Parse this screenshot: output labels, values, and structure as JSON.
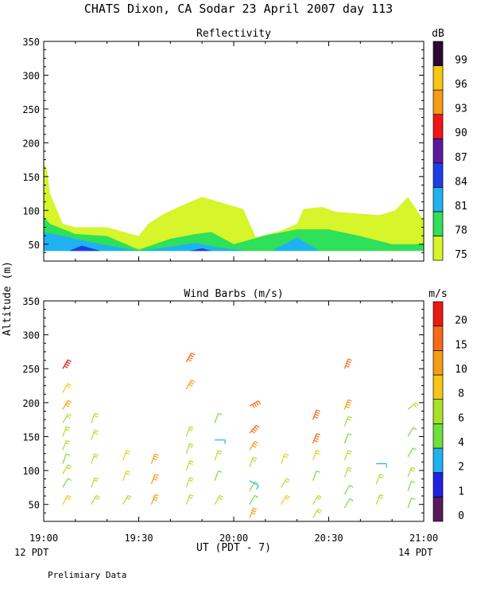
{
  "figure": {
    "title": "CHATS Dixon, CA  Sodar  23 April 2007  day 113",
    "y_axis_label": "Altitude (m)",
    "x_axis_label": "UT  (PDT - 7)",
    "pdt_start": "12 PDT",
    "pdt_end": "14 PDT",
    "footer": "Prelimiary Data"
  },
  "chart_data": [
    {
      "type": "area",
      "title": "Reflectivity",
      "ylabel": "Altitude (m)",
      "ylim": [
        25,
        350
      ],
      "yticks": [
        50,
        100,
        150,
        200,
        250,
        300,
        350
      ],
      "xlim": [
        "19:00",
        "21:00"
      ],
      "colorbar": {
        "title": "dB",
        "labels": [
          "75",
          "78",
          "81",
          "84",
          "87",
          "90",
          "93",
          "96",
          "99"
        ],
        "colors": [
          "#d6f52a",
          "#2ee05a",
          "#1fb2f0",
          "#1d3ee6",
          "#5b1a9e",
          "#f01616",
          "#f79a14",
          "#f5c614",
          "#2a0a2e"
        ]
      },
      "series": [
        {
          "level": "75",
          "x": [
            "19:00",
            "19:01",
            "19:02",
            "19:06",
            "19:10",
            "19:20",
            "19:30",
            "19:33",
            "19:38",
            "19:45",
            "19:50",
            "20:03",
            "20:07",
            "20:15",
            "20:20",
            "20:22",
            "20:28",
            "20:32",
            "20:40",
            "20:46",
            "20:51",
            "20:55",
            "21:00"
          ],
          "values": [
            170,
            160,
            125,
            80,
            75,
            75,
            62,
            80,
            95,
            110,
            120,
            102,
            60,
            70,
            80,
            102,
            105,
            98,
            95,
            93,
            100,
            120,
            85
          ]
        },
        {
          "level": "78",
          "x": [
            "19:00",
            "19:02",
            "19:10",
            "19:20",
            "19:30",
            "19:40",
            "19:48",
            "19:53",
            "20:00",
            "20:10",
            "20:20",
            "20:30",
            "20:40",
            "20:50",
            "21:00"
          ],
          "values": [
            90,
            80,
            65,
            62,
            42,
            58,
            65,
            68,
            50,
            63,
            72,
            72,
            62,
            50,
            50
          ]
        },
        {
          "level": "81",
          "x": [
            "19:00",
            "19:03",
            "19:10",
            "19:18",
            "19:30",
            "19:38",
            "19:48",
            "19:55",
            "20:05",
            "20:12",
            "20:20",
            "20:27",
            "21:00"
          ],
          "values": [
            68,
            65,
            58,
            50,
            40,
            45,
            52,
            45,
            40,
            40,
            60,
            40,
            40
          ]
        },
        {
          "level": "84",
          "x": [
            "19:08",
            "19:12",
            "19:18",
            "19:46",
            "19:50",
            "19:53"
          ],
          "values": [
            40,
            48,
            40,
            40,
            44,
            40
          ]
        }
      ]
    },
    {
      "type": "scatter",
      "title": "Wind Barbs (m/s)",
      "ylabel": "Altitude (m)",
      "ylim": [
        25,
        350
      ],
      "yticks": [
        50,
        100,
        150,
        200,
        250,
        300,
        350
      ],
      "xlim": [
        "19:00",
        "21:00"
      ],
      "xticks": [
        "19:00",
        "19:30",
        "20:00",
        "20:30",
        "21:00"
      ],
      "colorbar": {
        "title": "m/s",
        "labels": [
          "0",
          "1",
          "2",
          "4",
          "6",
          "8",
          "10",
          "15",
          "20"
        ],
        "colors": [
          "#5a1a5a",
          "#2020e0",
          "#1fb2f0",
          "#6ee03a",
          "#a8e02a",
          "#f5c614",
          "#f79a14",
          "#f56a14",
          "#e81a14"
        ]
      },
      "x": [
        "19:06",
        "19:06",
        "19:06",
        "19:06",
        "19:06",
        "19:06",
        "19:06",
        "19:06",
        "19:06",
        "19:06",
        "19:15",
        "19:15",
        "19:15",
        "19:15",
        "19:15",
        "19:25",
        "19:25",
        "19:25",
        "19:34",
        "19:34",
        "19:34",
        "19:45",
        "19:45",
        "19:45",
        "19:45",
        "19:45",
        "19:45",
        "19:45",
        "19:54",
        "19:54",
        "19:54",
        "19:54",
        "19:54",
        "20:05",
        "20:05",
        "20:05",
        "20:05",
        "20:05",
        "20:05",
        "20:05",
        "20:05",
        "20:15",
        "20:15",
        "20:15",
        "20:25",
        "20:25",
        "20:25",
        "20:25",
        "20:25",
        "20:25",
        "20:35",
        "20:35",
        "20:35",
        "20:35",
        "20:35",
        "20:35",
        "20:35",
        "20:35",
        "20:45",
        "20:45",
        "20:45",
        "20:55",
        "20:55",
        "20:55",
        "20:55",
        "20:55",
        "20:55"
      ],
      "values": [
        250,
        215,
        190,
        170,
        150,
        130,
        110,
        95,
        75,
        50,
        170,
        145,
        110,
        75,
        50,
        115,
        85,
        50,
        110,
        80,
        50,
        260,
        220,
        150,
        125,
        100,
        75,
        50,
        170,
        145,
        115,
        85,
        50,
        195,
        155,
        130,
        105,
        85,
        70,
        50,
        30,
        110,
        75,
        50,
        175,
        140,
        115,
        85,
        50,
        30,
        250,
        190,
        165,
        140,
        115,
        90,
        65,
        45,
        110,
        80,
        50,
        190,
        150,
        120,
        90,
        70,
        45
      ],
      "speeds": [
        20,
        9,
        10,
        7,
        6,
        6,
        5,
        6,
        5,
        8,
        6,
        7,
        6,
        7,
        6,
        9,
        9,
        6,
        10,
        10,
        10,
        18,
        10,
        6,
        6,
        6,
        6,
        6,
        5,
        3,
        6,
        5,
        6,
        15,
        15,
        10,
        6,
        2,
        5,
        5,
        10,
        9,
        6,
        8,
        15,
        15,
        9,
        5,
        6,
        6,
        15,
        14,
        6,
        5,
        6,
        6,
        5,
        4,
        3,
        6,
        6,
        6,
        4,
        5,
        6,
        5,
        5
      ],
      "directions": [
        30,
        30,
        30,
        30,
        20,
        20,
        20,
        30,
        30,
        30,
        20,
        20,
        20,
        20,
        30,
        20,
        20,
        30,
        20,
        20,
        20,
        30,
        30,
        20,
        20,
        20,
        20,
        20,
        20,
        90,
        20,
        20,
        30,
        60,
        40,
        30,
        20,
        120,
        30,
        30,
        20,
        20,
        30,
        30,
        20,
        20,
        20,
        20,
        30,
        30,
        20,
        20,
        20,
        20,
        20,
        20,
        30,
        30,
        90,
        20,
        20,
        50,
        30,
        30,
        20,
        20,
        20
      ]
    }
  ]
}
